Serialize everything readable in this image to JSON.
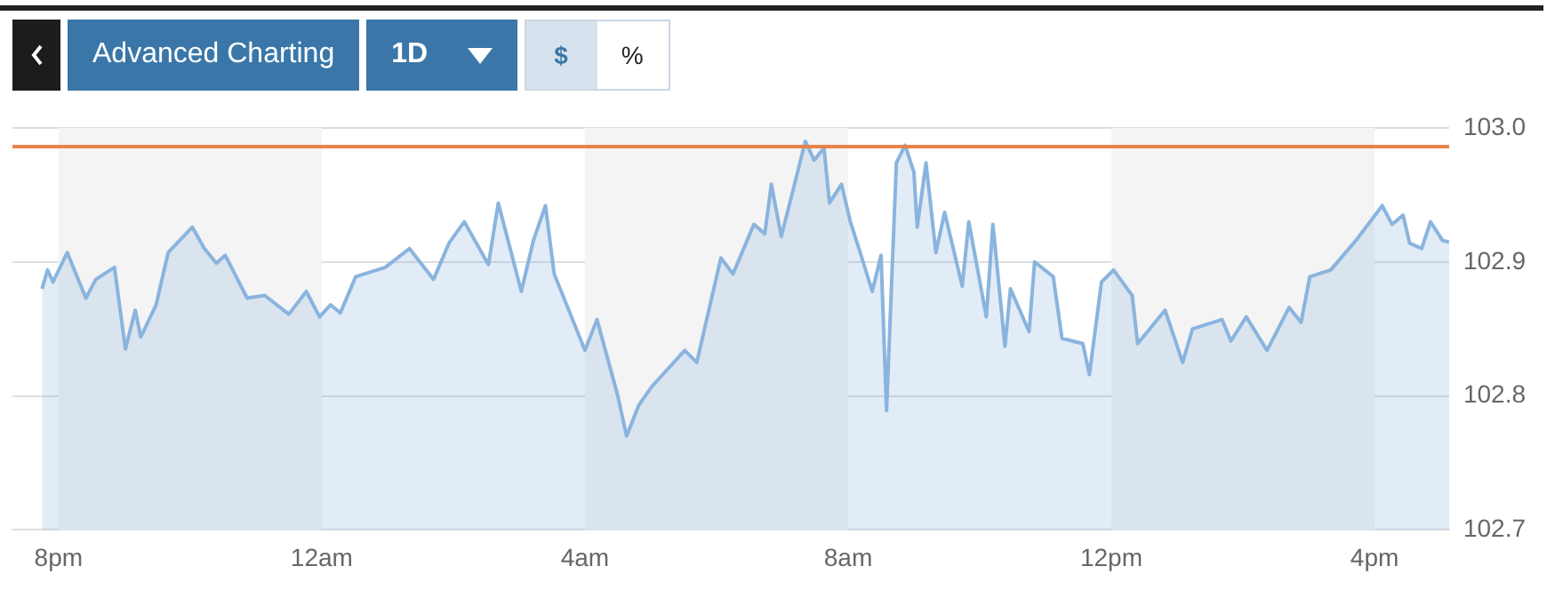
{
  "chart_data": {
    "type": "area",
    "annotations": [
      "Advanced Charting",
      "1D",
      "$",
      "%"
    ],
    "x": [
      "--01-01T19:45",
      "--01-01T19:50",
      "--01-01T19:55",
      "--01-01T20:08",
      "--01-01T20:17",
      "--01-01T20:25",
      "--01-01T20:34",
      "--01-01T20:51",
      "--01-01T21:01",
      "--01-01T21:10",
      "--01-01T21:15",
      "--01-01T21:29",
      "--01-01T21:40",
      "--01-01T22:02",
      "--01-01T22:13",
      "--01-01T22:24",
      "--01-01T22:32",
      "--01-01T22:52",
      "--01-01T23:08",
      "--01-01T23:30",
      "--01-01T23:46",
      "--01-01T23:58",
      "--01-02T00:08",
      "--01-02T00:17",
      "--01-02T00:31",
      "--01-02T00:58",
      "--01-02T01:20",
      "--01-02T01:42",
      "--01-02T01:56",
      "--01-02T02:10",
      "--01-02T02:32",
      "--01-02T02:41",
      "--01-02T03:02",
      "--01-02T03:13",
      "--01-02T03:24",
      "--01-02T03:32",
      "--01-02T04:00",
      "--01-02T04:11",
      "--01-02T04:30",
      "--01-02T04:38",
      "--01-02T04:49",
      "--01-02T05:01",
      "--01-02T05:11",
      "--01-02T05:31",
      "--01-02T05:42",
      "--01-02T06:04",
      "--01-02T06:15",
      "--01-02T06:34",
      "--01-02T06:44",
      "--01-02T06:50",
      "--01-02T06:59",
      "--01-02T07:04",
      "--01-02T07:21",
      "--01-02T07:29",
      "--01-02T07:38",
      "--01-02T07:43",
      "--01-02T07:54",
      "--01-02T08:02",
      "--01-02T08:11",
      "--01-02T08:22",
      "--01-02T08:30",
      "--01-02T08:35",
      "--01-02T08:44",
      "--01-02T08:52",
      "--01-02T09:00",
      "--01-02T09:03",
      "--01-02T09:11",
      "--01-02T09:20",
      "--01-02T09:28",
      "--01-02T09:44",
      "--01-02T09:50",
      "--01-02T10:06",
      "--01-02T10:12",
      "--01-02T10:23",
      "--01-02T10:28",
      "--01-02T10:45",
      "--01-02T10:50",
      "--01-02T11:07",
      "--01-02T11:15",
      "--01-02T11:34",
      "--01-02T11:40",
      "--01-02T11:51",
      "--01-02T12:02",
      "--01-02T12:19",
      "--01-02T12:24",
      "--01-02T12:49",
      "--01-02T13:05",
      "--01-02T13:14",
      "--01-02T13:41",
      "--01-02T13:49",
      "--01-02T14:03",
      "--01-02T14:22",
      "--01-02T14:42",
      "--01-02T14:53",
      "--01-02T15:01",
      "--01-02T15:20",
      "--01-02T15:43",
      "--01-02T16:07",
      "--01-02T16:16",
      "--01-02T16:26",
      "--01-02T16:32",
      "--01-02T16:43",
      "--01-02T16:51",
      "--01-02T17:02",
      "--01-02T17:08"
    ],
    "series": [
      {
        "color": "#8ab4de",
        "values": [
          102.88,
          102.894,
          102.885,
          102.907,
          102.889,
          102.873,
          102.887,
          102.896,
          102.835,
          102.864,
          102.844,
          102.868,
          102.907,
          102.926,
          102.91,
          102.899,
          102.905,
          102.873,
          102.875,
          102.861,
          102.878,
          102.859,
          102.868,
          102.862,
          102.889,
          102.896,
          102.91,
          102.887,
          102.914,
          102.93,
          102.898,
          102.944,
          102.878,
          102.916,
          102.942,
          102.891,
          102.834,
          102.857,
          102.8,
          102.77,
          102.793,
          102.807,
          102.816,
          102.834,
          102.825,
          102.903,
          102.891,
          102.928,
          102.921,
          102.958,
          102.919,
          102.935,
          102.99,
          102.976,
          102.985,
          102.944,
          102.958,
          102.93,
          102.907,
          102.878,
          102.905,
          102.789,
          102.974,
          102.987,
          102.967,
          102.926,
          102.974,
          102.907,
          102.937,
          102.882,
          102.93,
          102.859,
          102.928,
          102.837,
          102.88,
          102.848,
          102.9,
          102.889,
          102.843,
          102.839,
          102.816,
          102.885,
          102.894,
          102.875,
          102.839,
          102.864,
          102.825,
          102.85,
          102.857,
          102.841,
          102.859,
          102.834,
          102.866,
          102.855,
          102.889,
          102.894,
          102.916,
          102.942,
          102.928,
          102.935,
          102.914,
          102.91,
          102.93,
          102.916,
          102.915
        ]
      }
    ],
    "xlim": [
      "--01-01T19:18",
      "--01-02T17:08"
    ],
    "xticks": [
      {
        "value": "--01-01T20:00",
        "label": "8pm"
      },
      {
        "value": "--01-02T00:00",
        "label": "12am"
      },
      {
        "value": "--01-02T04:00",
        "label": "4am"
      },
      {
        "value": "--01-02T08:00",
        "label": "8am"
      },
      {
        "value": "--01-02T12:00",
        "label": "12pm"
      },
      {
        "value": "--01-02T16:00",
        "label": "4pm"
      }
    ],
    "ylim": [
      102.7,
      103
    ],
    "yticks": [
      102.7,
      102.8,
      102.9,
      {
        "value": 103,
        "label": "103.0"
      }
    ],
    "grid": "y",
    "legend": false,
    "marker": "none",
    "line_style": "solid",
    "ref_lines": [
      {
        "axis": "y",
        "value": 102.986,
        "color": "#e8834a"
      }
    ],
    "bands": [
      {
        "axis": "x",
        "from": "--01-01T20:00",
        "to": "--01-02T00:00",
        "color": "#f4f4f4"
      },
      {
        "axis": "x",
        "from": "--01-02T04:00",
        "to": "--01-02T08:00",
        "color": "#f4f4f4"
      },
      {
        "axis": "x",
        "from": "--01-02T12:00",
        "to": "--01-02T16:00",
        "color": "#f4f4f4"
      }
    ]
  }
}
